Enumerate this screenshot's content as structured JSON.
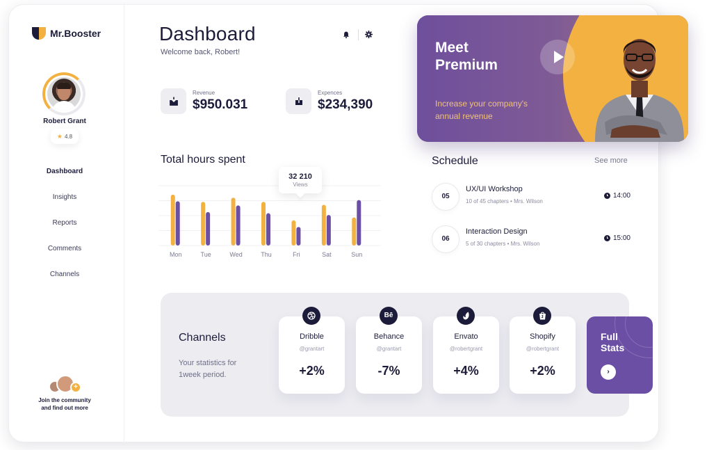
{
  "app": {
    "name": "Mr.Booster"
  },
  "profile": {
    "name": "Robert Grant",
    "rating": "4.8"
  },
  "nav": {
    "items": [
      {
        "label": "Dashboard",
        "active": true
      },
      {
        "label": "Insights"
      },
      {
        "label": "Reports"
      },
      {
        "label": "Comments"
      },
      {
        "label": "Channels"
      }
    ]
  },
  "community": {
    "line1": "Join the community",
    "line2": "and find out more",
    "plus": "+"
  },
  "header": {
    "title": "Dashboard",
    "welcome": "Welcome back, Robert!"
  },
  "stats": {
    "revenue": {
      "label": "Revenue",
      "value": "$950.031"
    },
    "expences": {
      "label": "Expences",
      "value": "$234,390"
    }
  },
  "hours": {
    "title": "Total hours spent",
    "tooltip": {
      "value": "32 210",
      "label": "Views"
    }
  },
  "chart_data": {
    "type": "bar",
    "title": "Total hours spent",
    "categories": [
      "Mon",
      "Tue",
      "Wed",
      "Thu",
      "Fri",
      "Sat",
      "Sun"
    ],
    "series": [
      {
        "values": [
          85,
          73,
          80,
          73,
          42,
          68,
          47
        ],
        "color": "#f2b140"
      },
      {
        "values": [
          74,
          56,
          67,
          54,
          31,
          51,
          76
        ],
        "color": "#6b4fa5"
      }
    ],
    "ylim": [
      0,
      100
    ],
    "highlight": {
      "category": "Fri",
      "value": "32 210",
      "label": "Views"
    },
    "grid": true
  },
  "schedule": {
    "title": "Schedule",
    "see_more": "See more",
    "items": [
      {
        "num": "05",
        "title": "UX/UI Workshop",
        "sub": "10 of 45 chapters • Mrs. Wilson",
        "time": "14:00"
      },
      {
        "num": "06",
        "title": "Interaction Design",
        "sub": "5 of 30 chapters • Mrs. Wilson",
        "time": "15:00"
      }
    ]
  },
  "channels": {
    "title": "Channels",
    "desc": "Your statistics for 1week  period.",
    "cards": [
      {
        "name": "Dribble",
        "handle": "@grantart",
        "value": "+2%",
        "icon": "dribbble-icon"
      },
      {
        "name": "Behance",
        "handle": "@grantart",
        "value": "-7%",
        "icon": "behance-icon",
        "glyph": "Bē"
      },
      {
        "name": "Envato",
        "handle": "@robertgrant",
        "value": "+4%",
        "icon": "envato-icon"
      },
      {
        "name": "Shopify",
        "handle": "@robertgrant",
        "value": "+2%",
        "icon": "shopify-icon"
      }
    ],
    "full_stats": {
      "label": "Full Stats",
      "arrow": "›"
    }
  },
  "premium": {
    "title": "Meet Premium",
    "subtitle": "Increase your company's annual revenue"
  },
  "colors": {
    "accent": "#f2b140",
    "purple": "#6b4fa5",
    "dark": "#1c1c3a",
    "panel": "#ececf1"
  }
}
